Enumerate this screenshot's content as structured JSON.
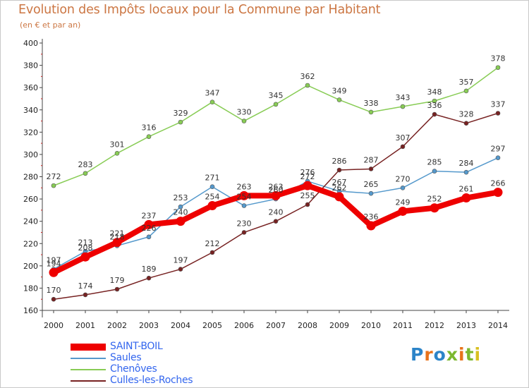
{
  "chart_title": "Evolution des Impôts locaux pour la Commune par Habitant",
  "chart_subtitle": "(en € et par an)",
  "logo_text": "Proxiti",
  "logo_colors": [
    "#2c84c8",
    "#e8731b",
    "#2c84c8",
    "#7cb82f",
    "#e8731b",
    "#7cb82f",
    "#d8c020"
  ],
  "chart_data": {
    "type": "line",
    "x": [
      2000,
      2001,
      2002,
      2003,
      2004,
      2005,
      2006,
      2007,
      2008,
      2009,
      2010,
      2011,
      2012,
      2013,
      2014
    ],
    "ylim": [
      160,
      400
    ],
    "yticks": [
      160,
      180,
      200,
      220,
      240,
      260,
      280,
      300,
      320,
      340,
      360,
      380,
      400
    ],
    "grid": false,
    "legend_position": "bottom-left",
    "series": [
      {
        "name": "SAINT-BOIL",
        "color": "#ee0000",
        "values": [
          194,
          208,
          221,
          237,
          240,
          254,
          263,
          263,
          272,
          262,
          236,
          249,
          252,
          261,
          266
        ]
      },
      {
        "name": "Saules",
        "color": "#5599cc",
        "values": [
          197,
          213,
          218,
          226,
          253,
          271,
          254,
          260,
          276,
          267,
          265,
          270,
          285,
          284,
          297
        ]
      },
      {
        "name": "Chenôves",
        "color": "#88cc55",
        "values": [
          272,
          283,
          301,
          316,
          329,
          347,
          330,
          345,
          362,
          349,
          338,
          343,
          348,
          357,
          378
        ]
      },
      {
        "name": "Culles-les-Roches",
        "color": "#772222",
        "values": [
          170,
          174,
          179,
          189,
          197,
          212,
          230,
          240,
          255,
          286,
          287,
          307,
          336,
          328,
          337
        ]
      }
    ]
  }
}
